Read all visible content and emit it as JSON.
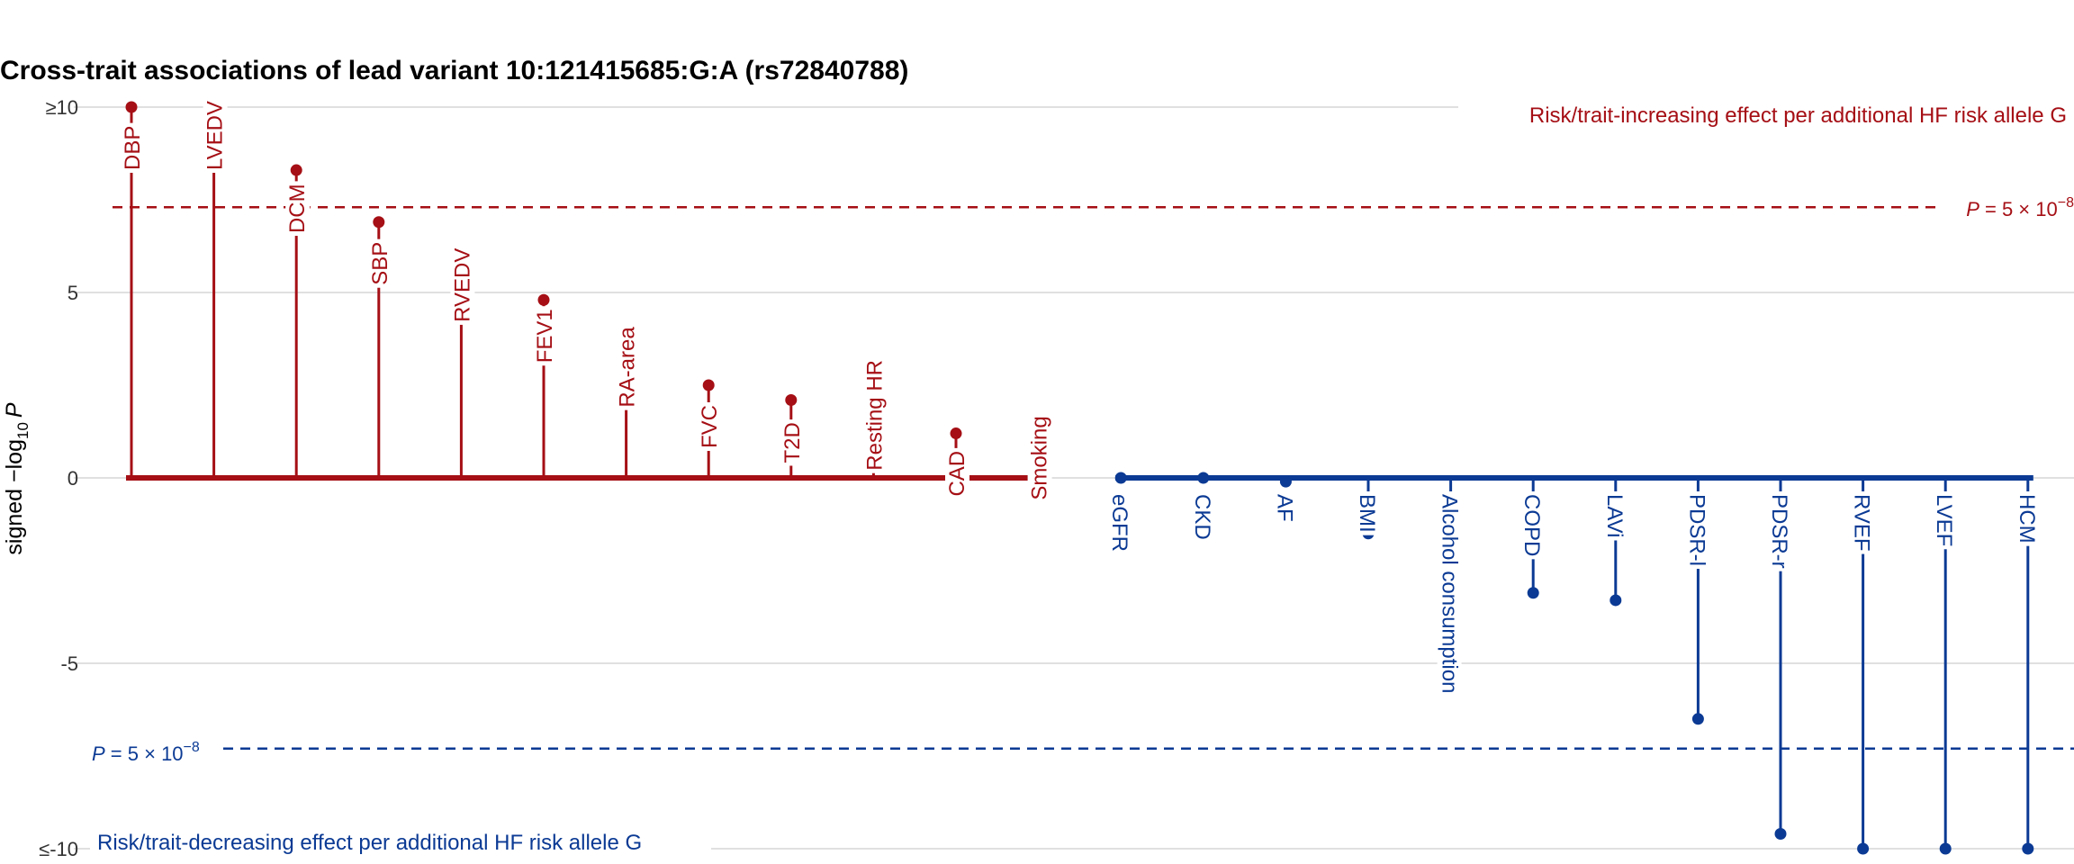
{
  "chart_data": {
    "type": "lollipop",
    "title": "Cross-trait associations of lead variant 10:121415685:G:A (rs72840788)",
    "ylabel": {
      "prefix": "signed  −log",
      "subscript": "10",
      "italic": "P"
    },
    "ylim": [
      -10,
      10
    ],
    "y_ticks": [
      {
        "value": 10,
        "label": "≥10"
      },
      {
        "value": 5,
        "label": "5"
      },
      {
        "value": 0,
        "label": "0"
      },
      {
        "value": -5,
        "label": "-5"
      },
      {
        "value": -10,
        "label": "≤-10"
      }
    ],
    "grid": true,
    "significance_threshold": {
      "value": 7.3,
      "label_italic": "P",
      "label_text": " = 5 × 10",
      "label_sup": "−8"
    },
    "annotations": {
      "increasing": "Risk/trait-increasing effect per additional HF risk allele G",
      "decreasing": "Risk/trait-decreasing effect per additional HF risk allele G"
    },
    "colors": {
      "increasing": "#a50f15",
      "decreasing": "#0b3a94",
      "grid": "#e0e0e0"
    },
    "series": [
      {
        "name": "increasing",
        "points": [
          {
            "trait": "DBP",
            "value": 10
          },
          {
            "trait": "LVEDV",
            "value": 10
          },
          {
            "trait": "DCM",
            "value": 8.3
          },
          {
            "trait": "SBP",
            "value": 6.9
          },
          {
            "trait": "RVEDV",
            "value": 5.9
          },
          {
            "trait": "FEV1",
            "value": 4.8
          },
          {
            "trait": "RA-area",
            "value": 3.6
          },
          {
            "trait": "FVC",
            "value": 2.5
          },
          {
            "trait": "T2D",
            "value": 2.1
          },
          {
            "trait": "Resting HR",
            "value": 1.9
          },
          {
            "trait": "CAD",
            "value": 1.2
          },
          {
            "trait": "Smoking",
            "value": 1.1
          }
        ]
      },
      {
        "name": "decreasing",
        "points": [
          {
            "trait": "eGFR",
            "value": 0
          },
          {
            "trait": "CKD",
            "value": 0
          },
          {
            "trait": "AF",
            "value": -0.1
          },
          {
            "trait": "BMI",
            "value": -1.5
          },
          {
            "trait": "Alcohol consumption",
            "value": -1.6
          },
          {
            "trait": "COPD",
            "value": -3.1
          },
          {
            "trait": "LAVi",
            "value": -3.3
          },
          {
            "trait": "PDSR-l",
            "value": -6.5
          },
          {
            "trait": "PDSR-r",
            "value": -9.6
          },
          {
            "trait": "RVEF",
            "value": -10
          },
          {
            "trait": "LVEF",
            "value": -10
          },
          {
            "trait": "HCM",
            "value": -10
          }
        ]
      }
    ]
  }
}
